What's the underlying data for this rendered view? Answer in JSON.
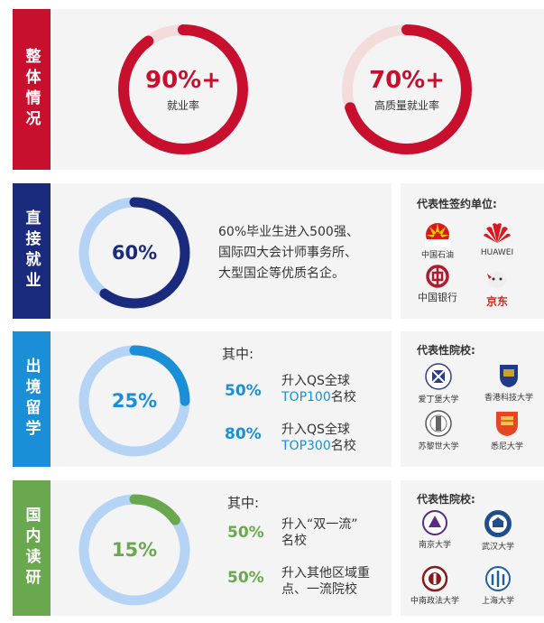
{
  "overall": {
    "label": "整体情况",
    "color": "#c8102e",
    "stats": [
      {
        "value": "90%+",
        "caption": "就业率",
        "fraction": 0.9
      },
      {
        "value": "70%+",
        "caption": "高质量就业率",
        "fraction": 0.7
      }
    ]
  },
  "employment": {
    "label": "直接就业",
    "color": "#1a2a7c",
    "value": "60%",
    "fraction": 0.6,
    "description": [
      "60%毕业生进入500强、",
      "国际四大会计师事务所、",
      "大型国企等优质名企。"
    ],
    "right_title": "代表性签约单位:",
    "logos": [
      {
        "name": "中国石油",
        "icon": "petrochina-icon"
      },
      {
        "name": "HUAWEI",
        "icon": "huawei-icon"
      },
      {
        "name": "中国银行",
        "icon": "boc-icon"
      },
      {
        "name": "京东",
        "icon": "jd-icon"
      }
    ]
  },
  "abroad": {
    "label": "出境留学",
    "color": "#1a8fd8",
    "value": "25%",
    "fraction": 0.25,
    "intro": "其中:",
    "items": [
      {
        "pct": "50%",
        "line1": "升入QS全球",
        "line2_hl": "TOP100",
        "line2_rest": "名校"
      },
      {
        "pct": "80%",
        "line1": "升入QS全球",
        "line2_hl": "TOP300",
        "line2_rest": "名校"
      }
    ],
    "right_title": "代表性院校:",
    "logos": [
      {
        "name": "爱丁堡大学",
        "icon": "edinburgh-icon"
      },
      {
        "name": "香港科技大学",
        "icon": "hkust-icon"
      },
      {
        "name": "苏黎世大学",
        "icon": "zurich-icon"
      },
      {
        "name": "悉尼大学",
        "icon": "sydney-icon"
      }
    ]
  },
  "postgrad": {
    "label": "国内读研",
    "color": "#6aa84f",
    "value": "15%",
    "fraction": 0.15,
    "intro": "其中:",
    "items": [
      {
        "pct": "50%",
        "line1": "升入“双一流”",
        "line2": "名校"
      },
      {
        "pct": "50%",
        "line1": "升入其他区域重",
        "line2": "点、一流院校"
      }
    ],
    "right_title": "代表性院校:",
    "logos": [
      {
        "name": "南京大学",
        "icon": "nju-icon"
      },
      {
        "name": "武汉大学",
        "icon": "whu-icon"
      },
      {
        "name": "中南政法大学",
        "icon": "zuel-icon"
      },
      {
        "name": "上海大学",
        "icon": "shu-icon"
      }
    ]
  }
}
